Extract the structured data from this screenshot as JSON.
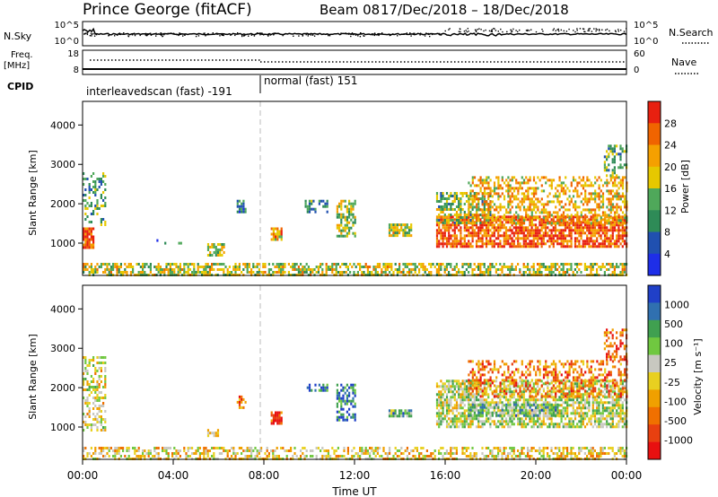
{
  "header": {
    "station": "Prince George (fitACF)",
    "beam": "Beam 08",
    "date_range": "17/Dec/2018 – 18/Dec/2018"
  },
  "top_panels": {
    "nsky_label": "N.Sky",
    "nsky_ticks": [
      "10^5",
      "10^0"
    ],
    "nsearch_label": "N.Search",
    "nsearch_ticks": [
      "10^5",
      "10^0"
    ],
    "freq_label": "Freq.",
    "freq_unit": "[MHz]",
    "freq_ticks": [
      "18",
      "8"
    ],
    "nave_label": "Nave",
    "nave_ticks": [
      "60",
      "0"
    ],
    "cpid_label": "CPID",
    "cpid_segments": [
      {
        "label": "interleavedscan (fast) -191",
        "start_h": 0,
        "end_h": 8
      },
      {
        "label": "normal (fast) 151",
        "start_h": 8,
        "end_h": 24
      }
    ]
  },
  "x_axis": {
    "title": "Time UT",
    "ticks": [
      "00:00",
      "04:00",
      "08:00",
      "12:00",
      "16:00",
      "20:00",
      "00:00"
    ],
    "tick_hours": [
      0,
      4,
      8,
      12,
      16,
      20,
      24
    ]
  },
  "colors": {
    "power": [
      "#1e2ee8",
      "#2050b0",
      "#2e8b57",
      "#4fa85a",
      "#e6c800",
      "#f5a000",
      "#f06400",
      "#e82010"
    ],
    "velocity": [
      "#2040c8",
      "#3070b0",
      "#40a050",
      "#70c840",
      "#c8c8c0",
      "#e8d020",
      "#f0a000",
      "#f07000",
      "#e84010",
      "#e81010"
    ]
  },
  "chart_data": [
    {
      "type": "heatmap",
      "name": "power",
      "ylabel": "Slant Range [km]",
      "yticks": [
        "1000",
        "2000",
        "3000",
        "4000"
      ],
      "ytick_values": [
        1000,
        2000,
        3000,
        4000
      ],
      "ylim": [
        180,
        4600
      ],
      "xlim": [
        0,
        24
      ],
      "colorbar_label": "Power [dB]",
      "colorbar_ticks": [
        "4",
        "8",
        "12",
        "16",
        "20",
        "24",
        "28"
      ],
      "colorbar_range": [
        0,
        32
      ],
      "regions": [
        {
          "t0": 0.0,
          "t1": 24.0,
          "r0": 200,
          "r1": 500,
          "level": 0.55,
          "density": 0.6
        },
        {
          "t0": 0.0,
          "t1": 0.5,
          "r0": 900,
          "r1": 1400,
          "level": 0.9,
          "density": 0.9
        },
        {
          "t0": 0.0,
          "t1": 1.0,
          "r0": 1500,
          "r1": 2800,
          "level": 0.4,
          "density": 0.35
        },
        {
          "t0": 3.0,
          "t1": 4.5,
          "r0": 1000,
          "r1": 1100,
          "level": 0.3,
          "density": 0.2
        },
        {
          "t0": 5.5,
          "t1": 6.2,
          "r0": 700,
          "r1": 1000,
          "level": 0.5,
          "density": 0.7
        },
        {
          "t0": 6.8,
          "t1": 7.2,
          "r0": 1800,
          "r1": 2100,
          "level": 0.3,
          "density": 0.6
        },
        {
          "t0": 8.3,
          "t1": 8.8,
          "r0": 1100,
          "r1": 1400,
          "level": 0.7,
          "density": 0.8
        },
        {
          "t0": 9.8,
          "t1": 10.8,
          "r0": 1800,
          "r1": 2100,
          "level": 0.3,
          "density": 0.5
        },
        {
          "t0": 11.2,
          "t1": 12.0,
          "r0": 1200,
          "r1": 2100,
          "level": 0.5,
          "density": 0.6
        },
        {
          "t0": 13.5,
          "t1": 14.5,
          "r0": 1200,
          "r1": 1500,
          "level": 0.55,
          "density": 0.85
        },
        {
          "t0": 15.6,
          "t1": 24.0,
          "r0": 900,
          "r1": 1700,
          "level": 0.85,
          "density": 0.75
        },
        {
          "t0": 15.6,
          "t1": 18.0,
          "r0": 1500,
          "r1": 2300,
          "level": 0.45,
          "density": 0.55
        },
        {
          "t0": 17.0,
          "t1": 24.0,
          "r0": 1500,
          "r1": 2700,
          "level": 0.65,
          "density": 0.45
        },
        {
          "t0": 23.0,
          "t1": 24.0,
          "r0": 2700,
          "r1": 3500,
          "level": 0.4,
          "density": 0.4
        }
      ]
    },
    {
      "type": "heatmap",
      "name": "velocity",
      "ylabel": "Slant Range [km]",
      "yticks": [
        "1000",
        "2000",
        "3000",
        "4000"
      ],
      "ytick_values": [
        1000,
        2000,
        3000,
        4000
      ],
      "ylim": [
        180,
        4600
      ],
      "xlim": [
        0,
        24
      ],
      "colorbar_label": "Velocity [m s⁻¹]",
      "colorbar_ticks": [
        "1000",
        "500",
        "100",
        "25",
        "-25",
        "-100",
        "-500",
        "-1000"
      ],
      "colorbar_range": [
        -1500,
        1500
      ],
      "regions": [
        {
          "t0": 0.0,
          "t1": 24.0,
          "r0": 200,
          "r1": 500,
          "level": 0.55,
          "density": 0.5
        },
        {
          "t0": 0.0,
          "t1": 1.0,
          "r0": 900,
          "r1": 2800,
          "level": 0.5,
          "density": 0.45
        },
        {
          "t0": 5.5,
          "t1": 6.0,
          "r0": 750,
          "r1": 950,
          "level": 0.5,
          "density": 0.7
        },
        {
          "t0": 6.8,
          "t1": 7.2,
          "r0": 1500,
          "r1": 1800,
          "level": 0.75,
          "density": 0.7
        },
        {
          "t0": 8.3,
          "t1": 8.8,
          "r0": 1100,
          "r1": 1400,
          "level": 0.9,
          "density": 0.8
        },
        {
          "t0": 9.8,
          "t1": 10.8,
          "r0": 1900,
          "r1": 2100,
          "level": 0.2,
          "density": 0.5
        },
        {
          "t0": 11.2,
          "t1": 12.0,
          "r0": 1200,
          "r1": 2100,
          "level": 0.15,
          "density": 0.6
        },
        {
          "t0": 13.5,
          "t1": 14.5,
          "r0": 1250,
          "r1": 1450,
          "level": 0.3,
          "density": 0.85
        },
        {
          "t0": 15.6,
          "t1": 24.0,
          "r0": 1000,
          "r1": 2200,
          "level": 0.45,
          "density": 0.65
        },
        {
          "t0": 17.0,
          "t1": 21.0,
          "r0": 1300,
          "r1": 1600,
          "level": 0.3,
          "density": 0.6
        },
        {
          "t0": 17.0,
          "t1": 24.0,
          "r0": 1800,
          "r1": 2700,
          "level": 0.75,
          "density": 0.45
        },
        {
          "t0": 23.0,
          "t1": 24.0,
          "r0": 2700,
          "r1": 3500,
          "level": 0.8,
          "density": 0.4
        }
      ]
    }
  ]
}
